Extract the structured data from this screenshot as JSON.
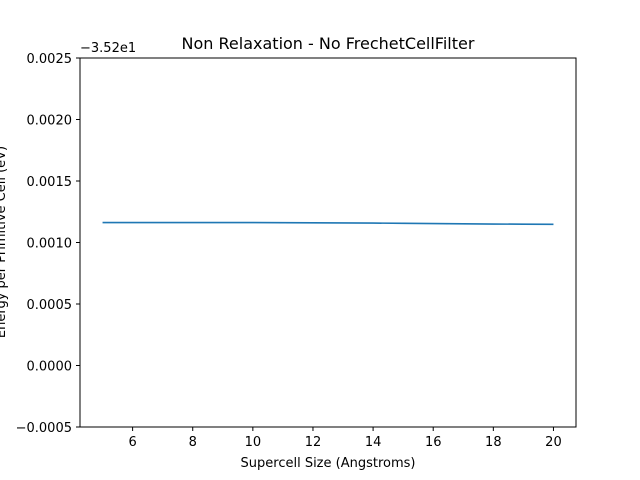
{
  "chart_data": {
    "type": "line",
    "title": "Non Relaxation - No FrechetCellFilter",
    "xlabel": "Supercell Size (Angstroms)",
    "ylabel": "Energy per Primitive Cell (eV)",
    "y_offset_label": "−3.52e1",
    "xlim": [
      4.25,
      20.75
    ],
    "ylim": [
      -0.0005,
      0.0025
    ],
    "x_ticks": [
      6,
      8,
      10,
      12,
      14,
      16,
      18,
      20
    ],
    "x_tick_labels": [
      "6",
      "8",
      "10",
      "12",
      "14",
      "16",
      "18",
      "20"
    ],
    "y_ticks": [
      -0.0005,
      0.0,
      0.0005,
      0.001,
      0.0015,
      0.002,
      0.0025
    ],
    "y_tick_labels": [
      "−0.0005",
      "0.0000",
      "0.0005",
      "0.0010",
      "0.0015",
      "0.0020",
      "0.0025"
    ],
    "grid": false,
    "series": [
      {
        "color": "#1f77b4",
        "x": [
          5,
          6,
          7,
          8,
          9,
          10,
          11,
          12,
          13,
          14,
          15,
          16,
          17,
          18,
          19,
          20
        ],
        "y": [
          0.001162,
          0.001162,
          0.001162,
          0.001162,
          0.001162,
          0.001162,
          0.001161,
          0.00116,
          0.001159,
          0.001158,
          0.001156,
          0.001154,
          0.001152,
          0.00115,
          0.001149,
          0.001148
        ]
      }
    ]
  }
}
